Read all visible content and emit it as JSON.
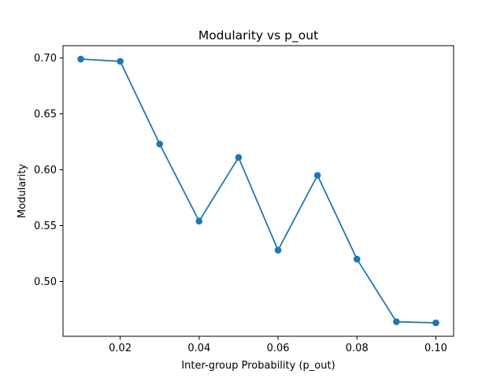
{
  "chart_data": {
    "type": "line",
    "title": "Modularity vs p_out",
    "xlabel": "Inter-group Probability (p_out)",
    "ylabel": "Modularity",
    "x": [
      0.01,
      0.02,
      0.03,
      0.04,
      0.05,
      0.06,
      0.07,
      0.08,
      0.09,
      0.1
    ],
    "series": [
      {
        "values": [
          0.699,
          0.697,
          0.623,
          0.554,
          0.611,
          0.528,
          0.595,
          0.52,
          0.464,
          0.463
        ],
        "color": "#1f77b4",
        "marker": "circle"
      }
    ],
    "xlim": [
      0.0055,
      0.1045
    ],
    "ylim": [
      0.451,
      0.711
    ],
    "xticks": [
      0.02,
      0.04,
      0.06,
      0.08,
      0.1
    ],
    "xtick_labels": [
      "0.02",
      "0.04",
      "0.06",
      "0.08",
      "0.10"
    ],
    "yticks": [
      0.5,
      0.55,
      0.6,
      0.65,
      0.7
    ],
    "ytick_labels": [
      "0.50",
      "0.55",
      "0.60",
      "0.65",
      "0.70"
    ],
    "grid": false,
    "legend": false
  }
}
